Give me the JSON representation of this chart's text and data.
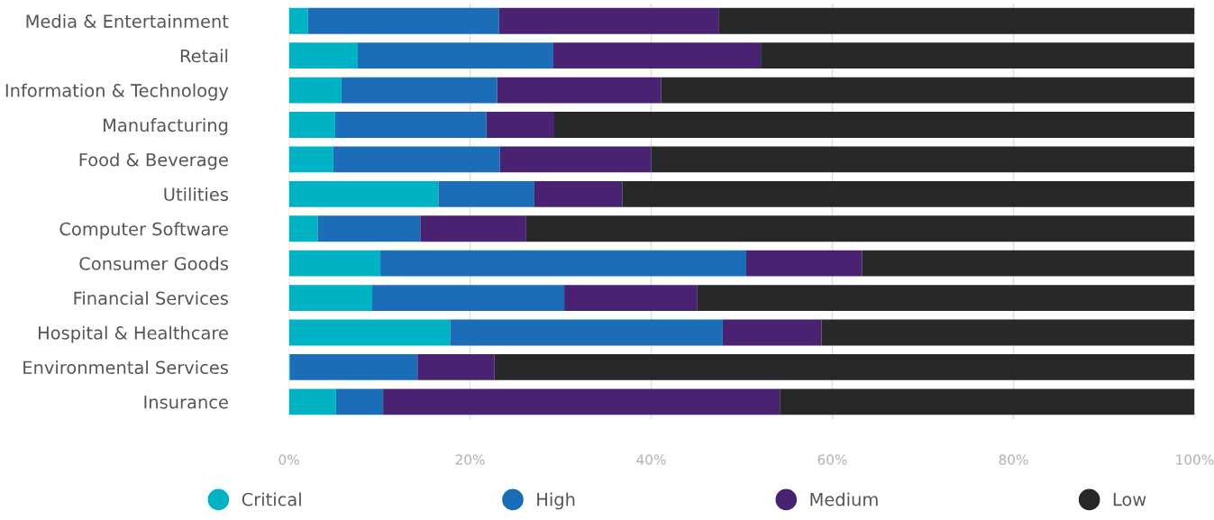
{
  "chart_data": {
    "type": "bar",
    "orientation": "horizontal",
    "stacked": true,
    "grid": "x",
    "legend": "bottom",
    "categories": [
      "Media & Entertainment",
      "Retail",
      "Information & Technology",
      "Manufacturing",
      "Food & Beverage",
      "Utilities",
      "Computer Software",
      "Consumer Goods",
      "Financial Services",
      "Hospital & Healthcare",
      "Environmental Services",
      "Insurance"
    ],
    "xlim": [
      0,
      100
    ],
    "xticks": [
      {
        "value": 0,
        "label": "0%"
      },
      {
        "value": 20,
        "label": "20%"
      },
      {
        "value": 40,
        "label": "40%"
      },
      {
        "value": 60,
        "label": "60%"
      },
      {
        "value": 80,
        "label": "80%"
      },
      {
        "value": 100,
        "label": "100%"
      }
    ],
    "series": [
      {
        "name": "Critical",
        "color": "#00b3c4",
        "values": [
          2.1,
          7.6,
          5.8,
          5.1,
          4.9,
          16.5,
          3.2,
          10.1,
          9.2,
          17.8,
          0.1,
          5.2
        ]
      },
      {
        "name": "High",
        "color": "#1c6db8",
        "values": [
          21.1,
          21.6,
          17.2,
          16.7,
          18.4,
          10.6,
          11.3,
          40.4,
          21.2,
          30.1,
          14.1,
          5.2
        ]
      },
      {
        "name": "Medium",
        "color": "#4a2272",
        "values": [
          24.3,
          22.9,
          18.1,
          7.5,
          16.7,
          9.7,
          11.7,
          12.8,
          14.7,
          10.9,
          8.5,
          43.8
        ]
      },
      {
        "name": "Low",
        "color": "#262829",
        "values": [
          52.5,
          47.9,
          58.9,
          70.7,
          60.0,
          63.2,
          73.8,
          36.7,
          54.9,
          41.2,
          77.3,
          45.8
        ]
      }
    ]
  }
}
